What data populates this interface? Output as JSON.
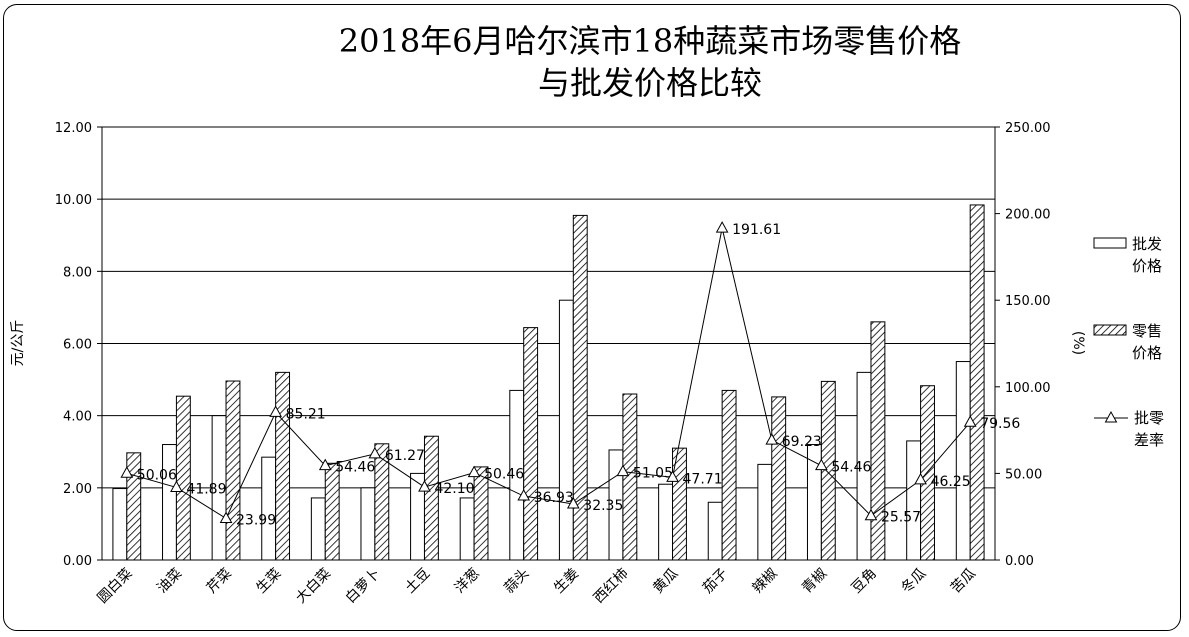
{
  "chart_data": {
    "type": "bar",
    "title_line1": "2018年6月哈尔滨市18种蔬菜市场零售价格",
    "title_line2": "与批发价格比较",
    "ylabel": "元/公斤",
    "y2label": "(%)",
    "ylim": [
      0,
      12
    ],
    "y2lim": [
      0,
      250
    ],
    "yticks": [
      "0.00",
      "2.00",
      "4.00",
      "6.00",
      "8.00",
      "10.00",
      "12.00"
    ],
    "y2ticks": [
      "0.00",
      "50.00",
      "100.00",
      "150.00",
      "200.00",
      "250.00"
    ],
    "grid": "horizontal",
    "legend_position": "right",
    "categories": [
      "圆白菜",
      "油菜",
      "芹菜",
      "生菜",
      "大白菜",
      "白萝卜",
      "土豆",
      "洋葱",
      "蒜头",
      "生姜",
      "西红柿",
      "黄瓜",
      "茄子",
      "辣椒",
      "青椒",
      "豆角",
      "冬瓜",
      "苦瓜"
    ],
    "series": [
      {
        "name": "批发价格",
        "kind": "bar",
        "axis": "left",
        "pattern": "plain",
        "values": [
          1.98,
          3.2,
          4.0,
          2.85,
          1.72,
          2.0,
          2.4,
          1.72,
          4.7,
          7.2,
          3.05,
          2.1,
          1.6,
          2.65,
          3.2,
          5.2,
          3.3,
          5.5
        ]
      },
      {
        "name": "零售价格",
        "kind": "bar",
        "axis": "left",
        "pattern": "hatched",
        "values": [
          2.97,
          4.54,
          4.96,
          5.2,
          2.68,
          3.22,
          3.43,
          2.58,
          6.44,
          9.55,
          4.6,
          3.1,
          4.7,
          4.52,
          4.95,
          6.6,
          4.83,
          9.84
        ]
      },
      {
        "name": "批零差率",
        "kind": "line",
        "axis": "right",
        "marker": "triangle",
        "values": [
          50.06,
          41.89,
          23.99,
          85.21,
          54.46,
          61.27,
          42.1,
          50.46,
          36.93,
          32.35,
          51.05,
          47.71,
          191.61,
          69.23,
          54.46,
          25.57,
          46.25,
          79.56
        ],
        "labels": [
          "50.06",
          "41.89",
          "23.99",
          "85.21",
          "54.46",
          "61.27",
          "42.10",
          "50.46",
          "36.93",
          "32.35",
          "51.05",
          "47.71",
          "191.61",
          "69.23",
          "54.46",
          "25.57",
          "46.25",
          "79.56"
        ]
      }
    ],
    "legend": [
      {
        "line1": "批发",
        "line2": "价格"
      },
      {
        "line1": "零售",
        "line2": "价格"
      },
      {
        "line1": "批零",
        "line2": "差率"
      }
    ]
  }
}
